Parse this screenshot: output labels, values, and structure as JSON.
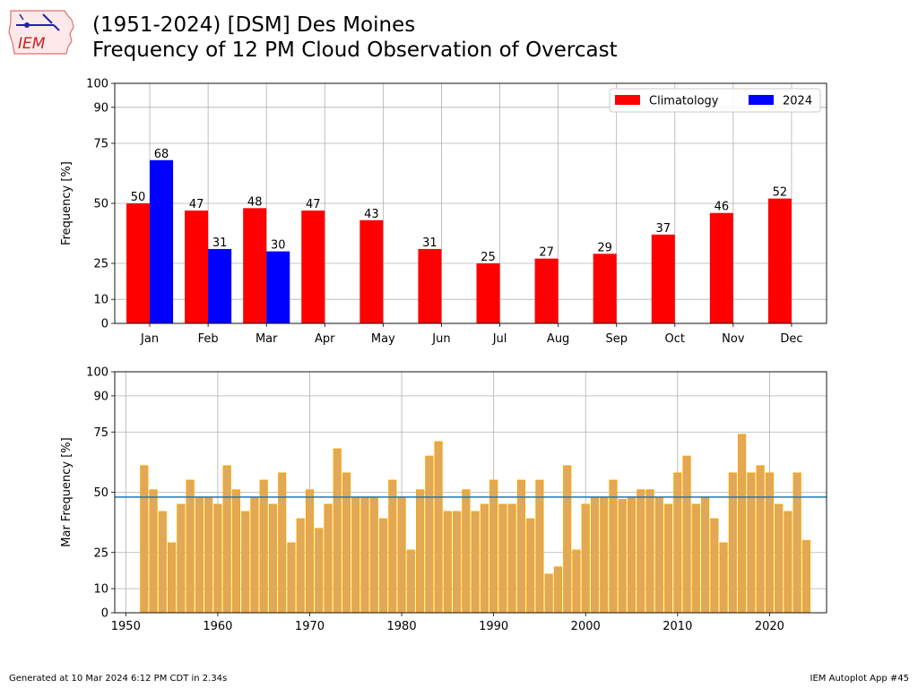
{
  "header": {
    "title_line1": "(1951-2024) [DSM] Des Moines",
    "title_line2": "Frequency of 12 PM Cloud Observation of Overcast",
    "logo_text": "IEM"
  },
  "footer": {
    "generated": "Generated at 10 Mar 2024 6:12 PM CDT in 2.34s",
    "app": "IEM Autoplot App #45"
  },
  "colors": {
    "climatology": "#ff0000",
    "current_year": "#0000ff",
    "yearly_fill": "#e0a85a",
    "yearly_edge": "#ffa500",
    "average_line": "#1f77b4",
    "grid": "#b0b0b0"
  },
  "chart_data": [
    {
      "type": "bar",
      "title": "",
      "xlabel": "",
      "ylabel": "Frequency [%]",
      "ylim": [
        0,
        100
      ],
      "yticks": [
        0,
        10,
        25,
        50,
        75,
        90,
        100
      ],
      "grid": true,
      "legend_position": "top-right",
      "categories": [
        "Jan",
        "Feb",
        "Mar",
        "Apr",
        "May",
        "Jun",
        "Jul",
        "Aug",
        "Sep",
        "Oct",
        "Nov",
        "Dec"
      ],
      "series": [
        {
          "name": "Climatology",
          "values": [
            50,
            47,
            48,
            47,
            43,
            31,
            25,
            27,
            29,
            37,
            46,
            52
          ]
        },
        {
          "name": "2024",
          "values": [
            68,
            31,
            30,
            null,
            null,
            null,
            null,
            null,
            null,
            null,
            null,
            null
          ]
        }
      ]
    },
    {
      "type": "bar",
      "title": "",
      "xlabel": "",
      "ylabel": "Mar Frequency [%]",
      "ylim": [
        0,
        100
      ],
      "xlim": [
        1949,
        2026
      ],
      "yticks": [
        0,
        10,
        25,
        50,
        75,
        90,
        100
      ],
      "xticks": [
        1950,
        1960,
        1970,
        1980,
        1990,
        2000,
        2010,
        2020
      ],
      "grid": true,
      "average": 48,
      "x": [
        1952,
        1953,
        1954,
        1955,
        1956,
        1957,
        1958,
        1959,
        1960,
        1961,
        1962,
        1963,
        1964,
        1965,
        1966,
        1967,
        1968,
        1969,
        1970,
        1971,
        1972,
        1973,
        1974,
        1975,
        1976,
        1977,
        1978,
        1979,
        1980,
        1981,
        1982,
        1983,
        1984,
        1985,
        1986,
        1987,
        1988,
        1989,
        1990,
        1991,
        1992,
        1993,
        1994,
        1995,
        1996,
        1997,
        1998,
        1999,
        2000,
        2001,
        2002,
        2003,
        2004,
        2005,
        2006,
        2007,
        2008,
        2009,
        2010,
        2011,
        2012,
        2013,
        2014,
        2015,
        2016,
        2017,
        2018,
        2019,
        2020,
        2021,
        2022,
        2023,
        2024
      ],
      "values": [
        61,
        51,
        42,
        29,
        45,
        55,
        48,
        48,
        45,
        61,
        51,
        42,
        48,
        55,
        45,
        58,
        29,
        39,
        51,
        35,
        45,
        68,
        58,
        48,
        48,
        48,
        39,
        55,
        48,
        26,
        51,
        65,
        71,
        42,
        42,
        51,
        42,
        45,
        55,
        45,
        45,
        55,
        39,
        55,
        16,
        19,
        61,
        26,
        45,
        48,
        48,
        55,
        47,
        48,
        51,
        51,
        48,
        45,
        58,
        65,
        45,
        48,
        39,
        29,
        58,
        74,
        58,
        61,
        58,
        45,
        42,
        58,
        30
      ]
    }
  ]
}
